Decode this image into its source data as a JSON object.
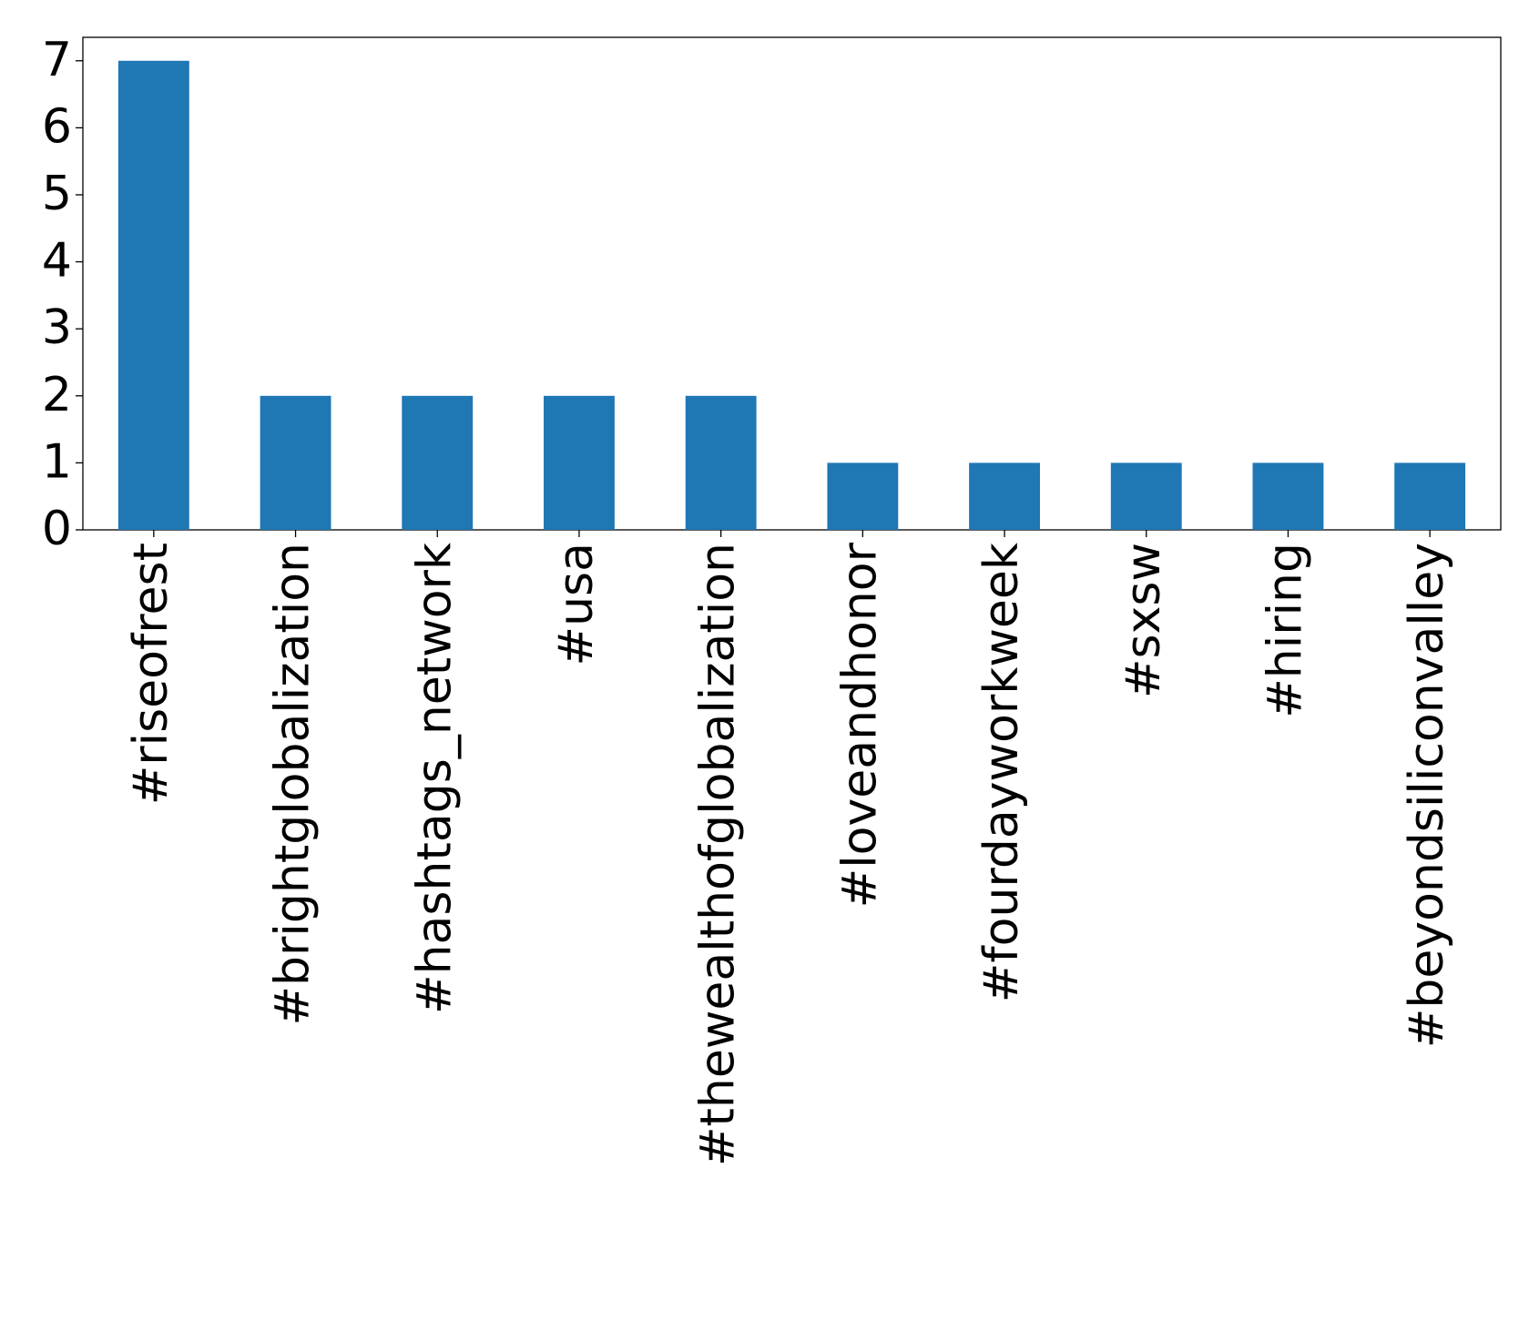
{
  "chart_data": {
    "type": "bar",
    "categories": [
      "#riseofrest",
      "#brightglobalization",
      "#hashtags_network",
      "#usa",
      "#thewealthofglobalization",
      "#loveandhonor",
      "#fourdayworkweek",
      "#sxsw",
      "#hiring",
      "#beyondsiliconvalley"
    ],
    "values": [
      7,
      2,
      2,
      2,
      2,
      1,
      1,
      1,
      1,
      1
    ],
    "color": "#1f77b4",
    "ylim": [
      0,
      7.35
    ],
    "yticks": [
      0,
      1,
      2,
      3,
      4,
      5,
      6,
      7
    ],
    "grid": false
  }
}
